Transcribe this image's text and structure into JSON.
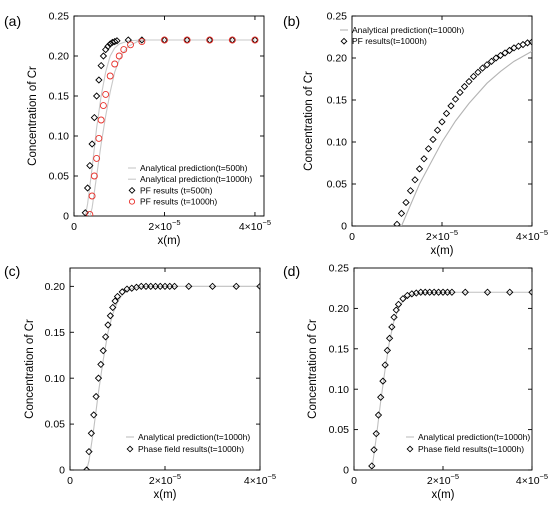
{
  "chart_data": [
    {
      "type": "line",
      "panel": "(a)",
      "xlabel": "x(m)",
      "ylabel": "Concentration of Cr",
      "xlim": [
        0,
        4.2e-05
      ],
      "ylim": [
        0,
        0.25
      ],
      "xticks": [
        {
          "value": 0,
          "label": "0"
        },
        {
          "value": 2e-05,
          "label": "2×10",
          "exp": "−5"
        },
        {
          "value": 4e-05,
          "label": "4×10",
          "exp": "−5"
        }
      ],
      "yticks": [
        {
          "value": 0,
          "label": "0"
        },
        {
          "value": 0.05,
          "label": "0.05"
        },
        {
          "value": 0.1,
          "label": "0.10"
        },
        {
          "value": 0.15,
          "label": "0.15"
        },
        {
          "value": 0.2,
          "label": "0.20"
        },
        {
          "value": 0.25,
          "label": "0.25"
        }
      ],
      "legend_position": "bottom-right",
      "series": [
        {
          "name": "Analytical prediction(t=500h)",
          "kind": "line",
          "color": "#c8c8c8",
          "x": [
            2.5e-06,
            3e-06,
            4e-06,
            5e-06,
            6e-06,
            7e-06,
            8e-06,
            9e-06,
            1e-05,
            1.2e-05,
            1.5e-05,
            2e-05,
            4e-05
          ],
          "y": [
            0,
            0.015,
            0.06,
            0.11,
            0.15,
            0.18,
            0.2,
            0.21,
            0.215,
            0.219,
            0.22,
            0.22,
            0.22
          ]
        },
        {
          "name": "Analytical prediction(t=1000h)",
          "kind": "line",
          "color": "#c8c8c8",
          "x": [
            3.5e-06,
            4e-06,
            5e-06,
            6e-06,
            7e-06,
            8e-06,
            9e-06,
            1e-05,
            1.1e-05,
            1.2e-05,
            1.4e-05,
            1.6e-05,
            2e-05,
            4e-05
          ],
          "y": [
            0,
            0.01,
            0.05,
            0.09,
            0.125,
            0.155,
            0.18,
            0.195,
            0.205,
            0.212,
            0.218,
            0.22,
            0.22,
            0.22
          ]
        },
        {
          "name": "PF results (t=500h)",
          "kind": "markers",
          "marker": "diamond",
          "color": "#000000",
          "x": [
            2.5e-06,
            3e-06,
            3.5e-06,
            4e-06,
            4.5e-06,
            5e-06,
            5.5e-06,
            6e-06,
            6.5e-06,
            7e-06,
            7.5e-06,
            8e-06,
            8.5e-06,
            9e-06,
            9.5e-06,
            1.2e-05,
            1.5e-05,
            2e-05,
            2.5e-05,
            3e-05,
            3.5e-05,
            4e-05
          ],
          "y": [
            0.004,
            0.035,
            0.063,
            0.09,
            0.123,
            0.15,
            0.17,
            0.188,
            0.2,
            0.208,
            0.212,
            0.215,
            0.217,
            0.218,
            0.219,
            0.22,
            0.22,
            0.22,
            0.22,
            0.22,
            0.22,
            0.22
          ]
        },
        {
          "name": "PF results (t=1000h)",
          "kind": "markers",
          "marker": "circle",
          "color": "#e8322c",
          "x": [
            3.5e-06,
            4e-06,
            4.5e-06,
            5e-06,
            5.5e-06,
            6e-06,
            6.5e-06,
            7e-06,
            8e-06,
            9e-06,
            1e-05,
            1.1e-05,
            1.25e-05,
            1.5e-05,
            2e-05,
            2.5e-05,
            3e-05,
            3.5e-05,
            4e-05
          ],
          "y": [
            0.002,
            0.025,
            0.05,
            0.072,
            0.097,
            0.12,
            0.138,
            0.152,
            0.175,
            0.19,
            0.2,
            0.208,
            0.214,
            0.218,
            0.22,
            0.22,
            0.22,
            0.22,
            0.22
          ]
        }
      ]
    },
    {
      "type": "line",
      "panel": "(b)",
      "xlabel": "x(m)",
      "ylabel": "Concentration of Cr",
      "xlim": [
        0,
        4e-05
      ],
      "ylim": [
        0,
        0.25
      ],
      "xticks": [
        {
          "value": 0,
          "label": "0"
        },
        {
          "value": 2e-05,
          "label": "2×10",
          "exp": "−5"
        },
        {
          "value": 4e-05,
          "label": "4×10",
          "exp": "−5"
        }
      ],
      "yticks": [
        {
          "value": 0,
          "label": "0"
        },
        {
          "value": 0.05,
          "label": "0.05"
        },
        {
          "value": 0.1,
          "label": "0.10"
        },
        {
          "value": 0.15,
          "label": "0.15"
        },
        {
          "value": 0.2,
          "label": "0.20"
        },
        {
          "value": 0.25,
          "label": "0.25"
        }
      ],
      "legend_position": "top-left",
      "series": [
        {
          "name": "Analytical prediction(t=1000h)",
          "kind": "line",
          "color": "#b4b4b4",
          "x": [
            1.1e-05,
            1.3e-05,
            1.5e-05,
            1.8e-05,
            2e-05,
            2.3e-05,
            2.6e-05,
            3e-05,
            3.3e-05,
            3.6e-05,
            4e-05
          ],
          "y": [
            0,
            0.025,
            0.05,
            0.08,
            0.1,
            0.125,
            0.146,
            0.17,
            0.184,
            0.196,
            0.208
          ]
        },
        {
          "name": "PF results(t=1000h)",
          "kind": "markers",
          "marker": "diamond",
          "color": "#000000",
          "x": [
            1e-05,
            1.1e-05,
            1.2e-05,
            1.3e-05,
            1.4e-05,
            1.5e-05,
            1.6e-05,
            1.7e-05,
            1.8e-05,
            1.9e-05,
            2e-05,
            2.1e-05,
            2.2e-05,
            2.3e-05,
            2.4e-05,
            2.5e-05,
            2.6e-05,
            2.7e-05,
            2.8e-05,
            2.9e-05,
            3e-05,
            3.1e-05,
            3.2e-05,
            3.3e-05,
            3.4e-05,
            3.5e-05,
            3.6e-05,
            3.7e-05,
            3.8e-05,
            3.9e-05,
            4e-05
          ],
          "y": [
            0.002,
            0.015,
            0.028,
            0.042,
            0.055,
            0.068,
            0.08,
            0.092,
            0.103,
            0.114,
            0.124,
            0.134,
            0.143,
            0.151,
            0.159,
            0.166,
            0.172,
            0.178,
            0.183,
            0.188,
            0.192,
            0.196,
            0.2,
            0.203,
            0.206,
            0.209,
            0.212,
            0.214,
            0.216,
            0.218,
            0.219
          ]
        }
      ]
    },
    {
      "type": "line",
      "panel": "(c)",
      "xlabel": "x(m)",
      "ylabel": "Concentration of Cr",
      "xlim": [
        0,
        4e-05
      ],
      "ylim": [
        0,
        0.22
      ],
      "xticks": [
        {
          "value": 0,
          "label": "0"
        },
        {
          "value": 2e-05,
          "label": "2×10",
          "exp": "−5"
        },
        {
          "value": 4e-05,
          "label": "4×10",
          "exp": "−5"
        }
      ],
      "yticks": [
        {
          "value": 0,
          "label": "0"
        },
        {
          "value": 0.05,
          "label": "0.05"
        },
        {
          "value": 0.1,
          "label": "0.10"
        },
        {
          "value": 0.15,
          "label": "0.15"
        },
        {
          "value": 0.2,
          "label": "0.20"
        }
      ],
      "legend_position": "bottom-right",
      "series": [
        {
          "name": "Analytical prediction(t=1000h)",
          "kind": "line",
          "color": "#c0c0c0",
          "x": [
            3.5e-06,
            4e-06,
            5e-06,
            6e-06,
            7e-06,
            8e-06,
            9e-06,
            1e-05,
            1.1e-05,
            1.2e-05,
            1.4e-05,
            1.6e-05,
            2e-05,
            4e-05
          ],
          "y": [
            0,
            0.01,
            0.045,
            0.085,
            0.12,
            0.15,
            0.17,
            0.183,
            0.191,
            0.196,
            0.199,
            0.2,
            0.2,
            0.2
          ]
        },
        {
          "name": "Phase field results(t=1000h)",
          "kind": "markers",
          "marker": "diamond",
          "color": "#000000",
          "x": [
            3.5e-06,
            4e-06,
            4.5e-06,
            5e-06,
            5.5e-06,
            6e-06,
            6.5e-06,
            7e-06,
            7.5e-06,
            8e-06,
            8.5e-06,
            9e-06,
            9.5e-06,
            1e-05,
            1.1e-05,
            1.2e-05,
            1.3e-05,
            1.4e-05,
            1.5e-05,
            1.6e-05,
            1.7e-05,
            1.8e-05,
            1.9e-05,
            2e-05,
            2.1e-05,
            2.2e-05,
            2.5e-05,
            3e-05,
            3.5e-05,
            4e-05
          ],
          "y": [
            0,
            0.02,
            0.04,
            0.06,
            0.08,
            0.1,
            0.115,
            0.13,
            0.145,
            0.158,
            0.168,
            0.177,
            0.184,
            0.189,
            0.194,
            0.197,
            0.198,
            0.199,
            0.2,
            0.2,
            0.2,
            0.2,
            0.2,
            0.2,
            0.2,
            0.2,
            0.2,
            0.2,
            0.2,
            0.2
          ]
        }
      ]
    },
    {
      "type": "line",
      "panel": "(d)",
      "xlabel": "x(m)",
      "ylabel": "Concentration of Cr",
      "xlim": [
        0,
        4e-05
      ],
      "ylim": [
        0,
        0.25
      ],
      "xticks": [
        {
          "value": 0,
          "label": "0"
        },
        {
          "value": 2e-05,
          "label": "2×10",
          "exp": "−5"
        },
        {
          "value": 4e-05,
          "label": "4×10",
          "exp": "−5"
        }
      ],
      "yticks": [
        {
          "value": 0,
          "label": "0"
        },
        {
          "value": 0.05,
          "label": "0.05"
        },
        {
          "value": 0.1,
          "label": "0.10"
        },
        {
          "value": 0.15,
          "label": "0.15"
        },
        {
          "value": 0.2,
          "label": "0.20"
        },
        {
          "value": 0.25,
          "label": "0.25"
        }
      ],
      "legend_position": "bottom-right",
      "series": [
        {
          "name": "Analytical prediction(t=1000h)",
          "kind": "line",
          "color": "#c0c0c0",
          "x": [
            4e-06,
            5e-06,
            6e-06,
            7e-06,
            8e-06,
            9e-06,
            1e-05,
            1.1e-05,
            1.2e-05,
            1.3e-05,
            1.5e-05,
            1.8e-05,
            2e-05,
            4e-05
          ],
          "y": [
            0,
            0.04,
            0.085,
            0.125,
            0.16,
            0.185,
            0.2,
            0.209,
            0.214,
            0.217,
            0.219,
            0.22,
            0.22,
            0.22
          ]
        },
        {
          "name": "Phase field results(t=1000h)",
          "kind": "markers",
          "marker": "diamond",
          "color": "#000000",
          "x": [
            4e-06,
            4.5e-06,
            5e-06,
            5.5e-06,
            6e-06,
            6.5e-06,
            7e-06,
            7.5e-06,
            8e-06,
            8.5e-06,
            9e-06,
            9.5e-06,
            1e-05,
            1.1e-05,
            1.2e-05,
            1.3e-05,
            1.4e-05,
            1.5e-05,
            1.6e-05,
            1.7e-05,
            1.8e-05,
            1.9e-05,
            2e-05,
            2.1e-05,
            2.2e-05,
            2.5e-05,
            3e-05,
            3.5e-05,
            4e-05
          ],
          "y": [
            0.005,
            0.025,
            0.045,
            0.068,
            0.09,
            0.11,
            0.13,
            0.148,
            0.163,
            0.177,
            0.189,
            0.198,
            0.205,
            0.212,
            0.216,
            0.218,
            0.219,
            0.22,
            0.22,
            0.22,
            0.22,
            0.22,
            0.22,
            0.22,
            0.22,
            0.22,
            0.22,
            0.22,
            0.22
          ]
        }
      ]
    }
  ]
}
